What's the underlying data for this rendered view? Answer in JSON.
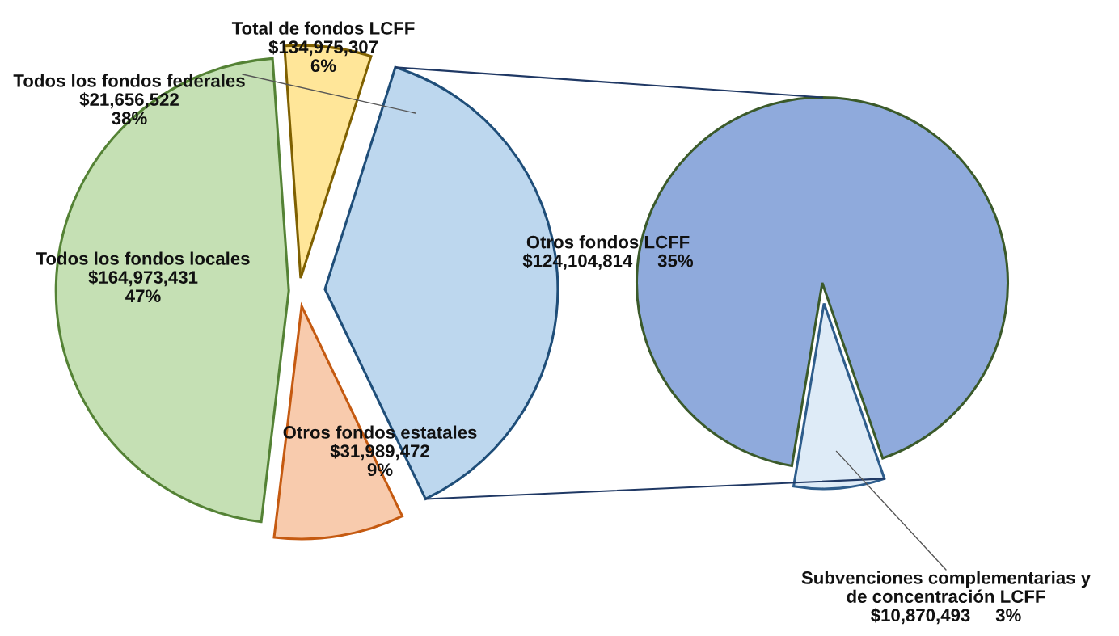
{
  "chart_data": [
    {
      "type": "pie",
      "categories": [
        "Todos los fondos locales",
        "Otros fondos estatales",
        "Todos los fondos federales",
        "Total de fondos LCFF"
      ],
      "values": [
        47,
        9,
        38,
        6
      ],
      "colors": [
        "#c5e0b4",
        "#f8cbad",
        "#bdd7ee",
        "#ffe699"
      ],
      "value_labels": [
        "$164,973,431\n47%",
        "$31,989,472\n9%",
        "$21,656,522\n38%",
        "$134,975,307\n6%"
      ]
    },
    {
      "type": "pie",
      "categories": [
        "Otros fondos LCFF",
        "Subvenciones complementarias y\nde concentración LCFF"
      ],
      "values": [
        35,
        3
      ],
      "colors": [
        "#8faadc",
        "#deebf7"
      ],
      "value_labels": [
        "$124,104,814     35%",
        "$10,870,493     3%"
      ]
    }
  ]
}
